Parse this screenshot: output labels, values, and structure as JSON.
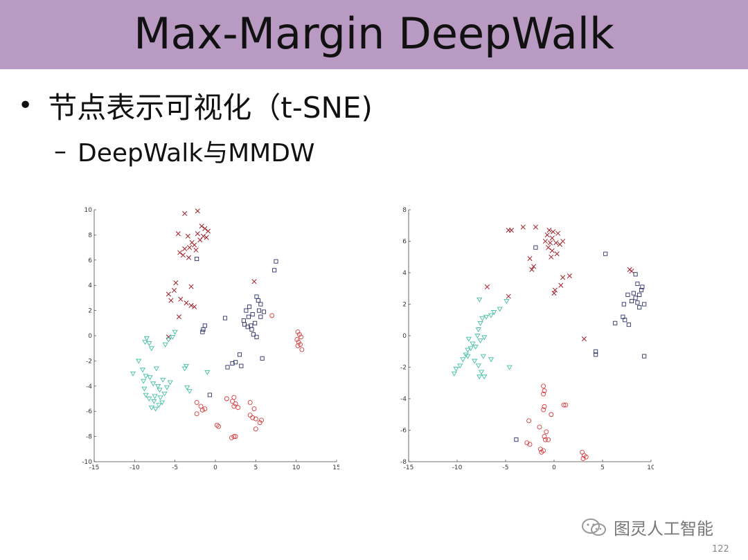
{
  "slide": {
    "title": "Max-Margin DeepWalk",
    "bullet": "节点表示可视化（t-SNE)",
    "sub_bullet": "DeepWalk与MMDW",
    "watermark": "图灵人工智能",
    "page_number": "122"
  },
  "colors": {
    "title_band": "#b89ac2",
    "cross": "#a01e28",
    "square": "#2a2f66",
    "circle": "#d63a3a",
    "triangle": "#3fbfa5"
  },
  "chart_data": [
    {
      "type": "scatter",
      "title": "",
      "xlabel": "",
      "ylabel": "",
      "xlim": [
        -15,
        15
      ],
      "ylim": [
        -10,
        10
      ],
      "xticks": [
        "-15",
        "-10",
        "-5",
        "0",
        "5",
        "10",
        "15"
      ],
      "yticks": [
        "10",
        "8",
        "6",
        "4",
        "2",
        "0",
        "-2",
        "-4",
        "-6",
        "-8",
        "-10"
      ],
      "legend": false,
      "series": [
        {
          "marker": "x",
          "points": [
            [
              -3.8,
              9.7
            ],
            [
              -2.2,
              9.9
            ],
            [
              -4.6,
              8.1
            ],
            [
              -3.4,
              7.9
            ],
            [
              -2.9,
              7.4
            ],
            [
              -1.7,
              8.7
            ],
            [
              -1.3,
              8.5
            ],
            [
              -0.9,
              8.3
            ],
            [
              -2.2,
              8.1
            ],
            [
              -1.5,
              7.9
            ],
            [
              -1.9,
              7.6
            ],
            [
              -2.6,
              7.2
            ],
            [
              -3.2,
              7.0
            ],
            [
              -3.8,
              6.9
            ],
            [
              -4.4,
              6.6
            ],
            [
              -4.0,
              6.4
            ],
            [
              -3.3,
              6.2
            ],
            [
              -2.4,
              6.8
            ],
            [
              -1.1,
              7.8
            ],
            [
              -4.9,
              4.2
            ],
            [
              -3.0,
              3.9
            ],
            [
              -5.8,
              3.3
            ],
            [
              -5.1,
              3.6
            ],
            [
              -4.3,
              2.9
            ],
            [
              -3.6,
              2.6
            ],
            [
              -3.0,
              2.4
            ],
            [
              -5.5,
              2.8
            ],
            [
              -4.5,
              1.5
            ],
            [
              -2.6,
              2.3
            ],
            [
              4.8,
              4.3
            ],
            [
              -5.8,
              -0.1
            ]
          ]
        },
        {
          "marker": "square",
          "points": [
            [
              -2.3,
              6.1
            ],
            [
              7.5,
              5.9
            ],
            [
              7.3,
              5.2
            ],
            [
              5.1,
              3.1
            ],
            [
              5.3,
              2.8
            ],
            [
              5.6,
              2.5
            ],
            [
              4.2,
              2.3
            ],
            [
              3.8,
              2.0
            ],
            [
              4.6,
              1.7
            ],
            [
              4.1,
              1.5
            ],
            [
              3.5,
              1.2
            ],
            [
              4.9,
              1.0
            ],
            [
              4.4,
              0.8
            ],
            [
              4.0,
              0.7
            ],
            [
              3.6,
              0.9
            ],
            [
              5.4,
              2.0
            ],
            [
              6.0,
              1.9
            ],
            [
              5.6,
              1.5
            ],
            [
              4.5,
              0.5
            ],
            [
              4.7,
              0.1
            ],
            [
              5.1,
              -0.1
            ],
            [
              1.2,
              1.4
            ],
            [
              -1.3,
              0.8
            ],
            [
              -1.5,
              0.5
            ],
            [
              -1.6,
              0.3
            ],
            [
              5.8,
              -1.8
            ],
            [
              3.0,
              -1.5
            ],
            [
              2.5,
              -2.1
            ],
            [
              2.1,
              -2.2
            ],
            [
              1.5,
              -2.5
            ],
            [
              3.2,
              -2.4
            ],
            [
              -0.7,
              -4.7
            ]
          ]
        },
        {
          "marker": "circle",
          "points": [
            [
              7.0,
              1.6
            ],
            [
              10.2,
              0.3
            ],
            [
              10.4,
              0.1
            ],
            [
              10.6,
              -0.1
            ],
            [
              10.1,
              -0.3
            ],
            [
              10.3,
              -0.5
            ],
            [
              10.5,
              -0.7
            ],
            [
              10.2,
              -0.8
            ],
            [
              10.7,
              -1.1
            ],
            [
              1.4,
              -5.0
            ],
            [
              2.3,
              -4.9
            ],
            [
              2.1,
              -5.2
            ],
            [
              2.5,
              -5.4
            ],
            [
              4.3,
              -5.3
            ],
            [
              -2.3,
              -5.3
            ],
            [
              -1.8,
              -5.6
            ],
            [
              -1.3,
              -5.8
            ],
            [
              -1.6,
              -5.9
            ],
            [
              -2.3,
              -6.2
            ],
            [
              2.3,
              -5.6
            ],
            [
              2.8,
              -5.7
            ],
            [
              4.8,
              -5.8
            ],
            [
              4.3,
              -6.3
            ],
            [
              4.6,
              -6.5
            ],
            [
              5.0,
              -6.6
            ],
            [
              5.7,
              -6.7
            ],
            [
              5.5,
              -6.9
            ],
            [
              0.2,
              -7.1
            ],
            [
              0.4,
              -7.2
            ],
            [
              5.0,
              -7.4
            ],
            [
              2.0,
              -8.1
            ],
            [
              2.3,
              -8.0
            ],
            [
              2.5,
              -8.0
            ]
          ]
        },
        {
          "marker": "triangle",
          "points": [
            [
              -8.5,
              -0.2
            ],
            [
              -8.7,
              -0.5
            ],
            [
              -8.2,
              -0.6
            ],
            [
              -7.9,
              -1.0
            ],
            [
              -6.2,
              -0.7
            ],
            [
              -5.8,
              -0.3
            ],
            [
              -5.3,
              -0.1
            ],
            [
              -5.0,
              0.3
            ],
            [
              -9.5,
              -2.0
            ],
            [
              -10.2,
              -3.0
            ],
            [
              -9.0,
              -2.7
            ],
            [
              -8.6,
              -3.2
            ],
            [
              -8.9,
              -3.6
            ],
            [
              -8.1,
              -3.3
            ],
            [
              -7.3,
              -2.6
            ],
            [
              -7.7,
              -3.8
            ],
            [
              -7.1,
              -4.0
            ],
            [
              -6.5,
              -3.5
            ],
            [
              -6.0,
              -4.1
            ],
            [
              -6.9,
              -4.3
            ],
            [
              -6.3,
              -4.6
            ],
            [
              -7.5,
              -4.8
            ],
            [
              -8.6,
              -4.7
            ],
            [
              -8.2,
              -5.0
            ],
            [
              -7.6,
              -5.2
            ],
            [
              -7.9,
              -5.7
            ],
            [
              -7.4,
              -5.8
            ],
            [
              -6.8,
              -4.9
            ],
            [
              -3.8,
              -2.6
            ],
            [
              -3.6,
              -2.4
            ],
            [
              -1.0,
              -2.9
            ],
            [
              -3.2,
              -4.4
            ],
            [
              -3.5,
              -4.1
            ],
            [
              -7.0,
              -5.5
            ],
            [
              -8.8,
              -4.2
            ],
            [
              -5.6,
              -3.7
            ],
            [
              -6.6,
              -5.3
            ]
          ]
        }
      ]
    },
    {
      "type": "scatter",
      "title": "",
      "xlabel": "",
      "ylabel": "",
      "xlim": [
        -15,
        10
      ],
      "ylim": [
        -8,
        8
      ],
      "xticks": [
        "-15",
        "-10",
        "-5",
        "0",
        "5",
        "10"
      ],
      "yticks": [
        "8",
        "6",
        "4",
        "2",
        "0",
        "-2",
        "-4",
        "-6",
        "-8"
      ],
      "legend": false,
      "series": [
        {
          "marker": "x",
          "points": [
            [
              -4.7,
              6.7
            ],
            [
              -4.4,
              6.7
            ],
            [
              -3.2,
              6.9
            ],
            [
              -1.9,
              6.9
            ],
            [
              -0.5,
              6.7
            ],
            [
              -0.1,
              6.6
            ],
            [
              0.4,
              6.5
            ],
            [
              -0.7,
              6.4
            ],
            [
              -0.2,
              6.2
            ],
            [
              -0.9,
              6.0
            ],
            [
              -0.4,
              5.9
            ],
            [
              0.2,
              5.9
            ],
            [
              0.6,
              5.8
            ],
            [
              0.9,
              6.0
            ],
            [
              -0.6,
              5.6
            ],
            [
              -0.2,
              5.4
            ],
            [
              0.3,
              5.2
            ],
            [
              -0.3,
              5.0
            ],
            [
              -2.5,
              4.9
            ],
            [
              -2.1,
              4.4
            ],
            [
              -2.3,
              4.2
            ],
            [
              0.9,
              3.7
            ],
            [
              1.6,
              3.8
            ],
            [
              0.7,
              3.2
            ],
            [
              0.1,
              2.9
            ],
            [
              0.0,
              2.7
            ],
            [
              -4.7,
              2.5
            ],
            [
              -6.9,
              3.1
            ],
            [
              7.8,
              4.2
            ],
            [
              8.0,
              4.1
            ],
            [
              3.1,
              -0.2
            ]
          ]
        },
        {
          "marker": "square",
          "points": [
            [
              -1.9,
              5.6
            ],
            [
              5.3,
              5.2
            ],
            [
              8.4,
              3.9
            ],
            [
              8.6,
              3.3
            ],
            [
              9.1,
              3.1
            ],
            [
              8.2,
              2.7
            ],
            [
              8.8,
              2.6
            ],
            [
              9.0,
              2.9
            ],
            [
              7.6,
              2.6
            ],
            [
              8.4,
              2.4
            ],
            [
              8.0,
              2.2
            ],
            [
              8.6,
              2.1
            ],
            [
              9.3,
              2.0
            ],
            [
              7.2,
              2.0
            ],
            [
              8.8,
              1.8
            ],
            [
              7.1,
              1.2
            ],
            [
              7.3,
              1.0
            ],
            [
              6.3,
              0.8
            ],
            [
              7.7,
              0.7
            ],
            [
              4.3,
              -1.0
            ],
            [
              4.3,
              -1.2
            ],
            [
              9.3,
              -1.3
            ],
            [
              -3.9,
              -6.6
            ]
          ]
        },
        {
          "marker": "circle",
          "points": [
            [
              -1.1,
              -3.2
            ],
            [
              -1.0,
              -3.5
            ],
            [
              -1.1,
              -3.7
            ],
            [
              1.0,
              -4.4
            ],
            [
              1.2,
              -4.4
            ],
            [
              -1.0,
              -4.5
            ],
            [
              -1.1,
              -4.7
            ],
            [
              -0.3,
              -5.0
            ],
            [
              -2.6,
              -5.4
            ],
            [
              -1.5,
              -5.8
            ],
            [
              -0.8,
              -6.1
            ],
            [
              -1.0,
              -6.4
            ],
            [
              -0.6,
              -6.6
            ],
            [
              -0.9,
              -6.6
            ],
            [
              -2.8,
              -6.8
            ],
            [
              -2.5,
              -6.9
            ],
            [
              -1.4,
              -7.2
            ],
            [
              -1.1,
              -7.3
            ],
            [
              -1.3,
              -7.4
            ],
            [
              2.9,
              -7.4
            ],
            [
              3.1,
              -7.6
            ],
            [
              3.3,
              -7.7
            ],
            [
              3.0,
              -7.8
            ]
          ]
        },
        {
          "marker": "triangle",
          "points": [
            [
              -9.7,
              -1.9
            ],
            [
              -10.1,
              -2.1
            ],
            [
              -10.3,
              -2.4
            ],
            [
              -9.4,
              -1.5
            ],
            [
              -9.1,
              -1.2
            ],
            [
              -8.9,
              -0.9
            ],
            [
              -8.6,
              -0.8
            ],
            [
              -8.4,
              -0.5
            ],
            [
              -8.1,
              -0.7
            ],
            [
              -8.8,
              -0.2
            ],
            [
              -7.9,
              0.0
            ],
            [
              -7.6,
              -0.3
            ],
            [
              -7.2,
              -0.1
            ],
            [
              -7.8,
              0.4
            ],
            [
              -7.6,
              0.8
            ],
            [
              -7.4,
              1.1
            ],
            [
              -7.0,
              1.2
            ],
            [
              -6.5,
              1.3
            ],
            [
              -6.2,
              1.5
            ],
            [
              -5.6,
              1.7
            ],
            [
              -4.9,
              2.2
            ],
            [
              -7.7,
              2.3
            ],
            [
              -8.9,
              -1.3
            ],
            [
              -8.2,
              -1.6
            ],
            [
              -7.8,
              -1.9
            ],
            [
              -7.5,
              -2.3
            ],
            [
              -7.7,
              -2.6
            ],
            [
              -6.5,
              -1.5
            ],
            [
              -4.6,
              -2.0
            ],
            [
              -7.3,
              -1.3
            ],
            [
              -7.2,
              -2.6
            ]
          ]
        }
      ]
    }
  ]
}
